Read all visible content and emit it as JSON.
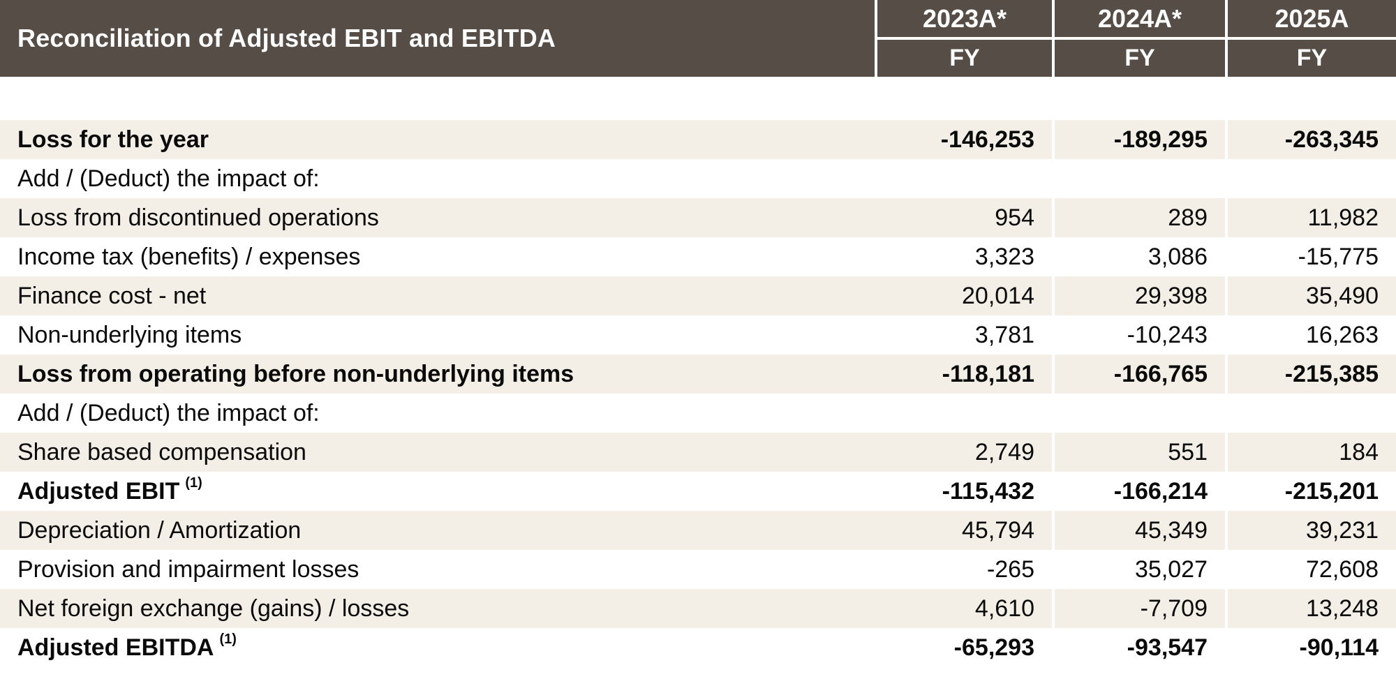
{
  "table": {
    "title": "Reconciliation of Adjusted EBIT and EBITDA",
    "columns": [
      {
        "year": "2023A*",
        "period": "FY"
      },
      {
        "year": "2024A*",
        "period": "FY"
      },
      {
        "year": "2025A",
        "period": "FY"
      }
    ],
    "rows": [
      {
        "label": "Loss for the year",
        "bold": true,
        "values": [
          "-146,253",
          "-189,295",
          "-263,345"
        ]
      },
      {
        "label": "Add / (Deduct) the impact of:",
        "bold": false,
        "values": [
          "",
          "",
          ""
        ]
      },
      {
        "label": "Loss from discontinued operations",
        "bold": false,
        "values": [
          "954",
          "289",
          "11,982"
        ]
      },
      {
        "label": "Income tax (benefits) / expenses",
        "bold": false,
        "values": [
          "3,323",
          "3,086",
          "-15,775"
        ]
      },
      {
        "label": "Finance cost - net",
        "bold": false,
        "values": [
          "20,014",
          "29,398",
          "35,490"
        ]
      },
      {
        "label": "Non-underlying items",
        "bold": false,
        "values": [
          "3,781",
          "-10,243",
          "16,263"
        ]
      },
      {
        "label": "Loss from operating before non-underlying items",
        "bold": true,
        "values": [
          "-118,181",
          "-166,765",
          "-215,385"
        ]
      },
      {
        "label": "Add / (Deduct) the impact of:",
        "bold": false,
        "values": [
          "",
          "",
          ""
        ]
      },
      {
        "label": "Share based compensation",
        "bold": false,
        "values": [
          "2,749",
          "551",
          "184"
        ]
      },
      {
        "label": "Adjusted EBIT",
        "sup": "(1)",
        "bold": true,
        "values": [
          "-115,432",
          "-166,214",
          "-215,201"
        ]
      },
      {
        "label": "Depreciation / Amortization",
        "bold": false,
        "values": [
          "45,794",
          "45,349",
          "39,231"
        ]
      },
      {
        "label": "Provision and impairment losses",
        "bold": false,
        "values": [
          "-265",
          "35,027",
          "72,608"
        ]
      },
      {
        "label": "Net foreign exchange (gains) / losses",
        "bold": false,
        "values": [
          "4,610",
          "-7,709",
          "13,248"
        ]
      },
      {
        "label": "Adjusted EBITDA",
        "sup": "(1)",
        "bold": true,
        "values": [
          "-65,293",
          "-93,547",
          "-90,114"
        ]
      }
    ],
    "colors": {
      "header_bg": "#564D47",
      "header_text": "#FFFFFF",
      "band_bg": "#F3EFE7",
      "row_bg": "#FFFFFF",
      "body_text": "#0A0A0A"
    }
  }
}
